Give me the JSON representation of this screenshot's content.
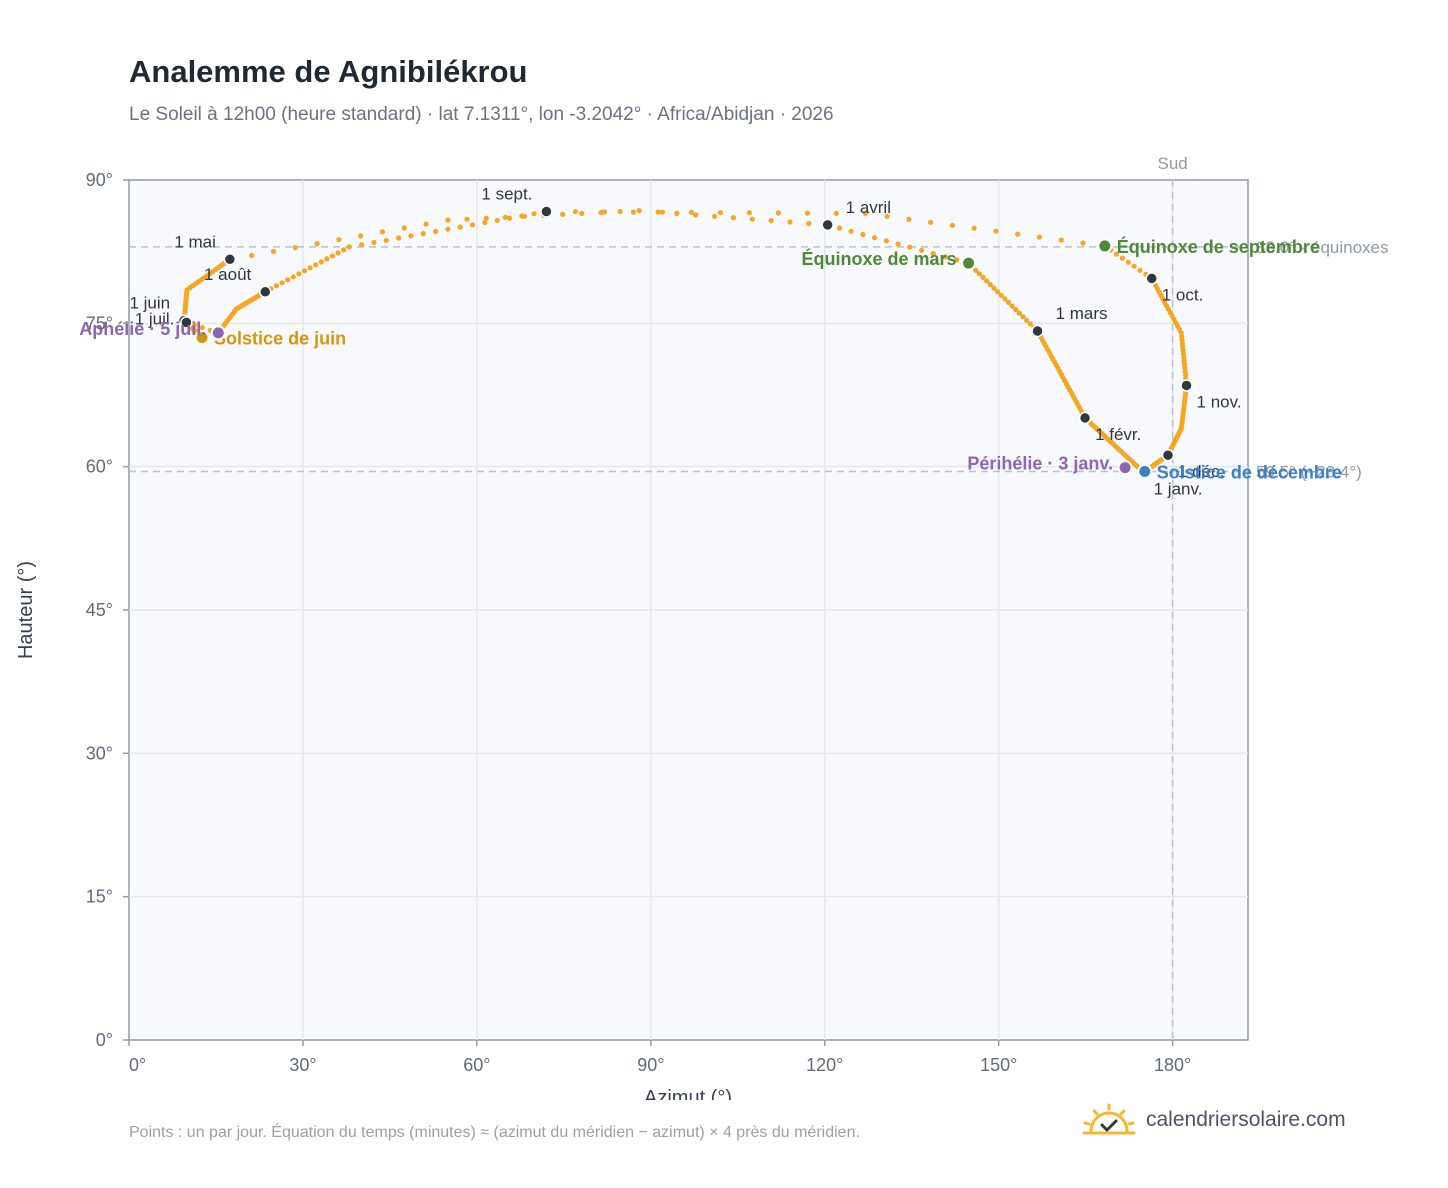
{
  "header": {
    "title": "Analemme de Agnibilékrou",
    "subtitle": "Le Soleil à 12h00 (heure standard) · lat 7.1311°, lon -3.2042° · Africa/Abidjan · 2026"
  },
  "footer": {
    "note": "Points : un par jour. Équation du temps (minutes) ≈ (azimut du méridien − azimut) × 4 près du méridien.",
    "brand": "calendriersolaire.com",
    "brand_icon": "sun-check-icon"
  },
  "colors": {
    "curve": "#f5a623",
    "month_marker": "#2f3742",
    "equinox": "#4e8a35",
    "june_solstice": "#d4950f",
    "december_solstice": "#3d7ec4",
    "apsis": "#9065b0",
    "reference_line": "#b8c1cc",
    "plot_background": "#f7f9fc",
    "grid": "#e3e8ee"
  },
  "chart_data": {
    "type": "scatter",
    "xlabel": "Azimut (°)",
    "ylabel": "Hauteur (°)",
    "xlim": [
      0,
      193
    ],
    "ylim": [
      0,
      90
    ],
    "x_ticks": [
      0,
      30,
      60,
      90,
      120,
      150,
      180
    ],
    "y_ticks": [
      0,
      15,
      30,
      45,
      60,
      75,
      90
    ],
    "tick_suffix": "°",
    "grid": true,
    "analemma_keypoints": [
      {
        "day": 1,
        "az": 175.0,
        "alt": 59.4
      },
      {
        "day": 32,
        "az": 164.9,
        "alt": 65.1
      },
      {
        "day": 60,
        "az": 156.7,
        "alt": 74.2
      },
      {
        "day": 79,
        "az": 144.8,
        "alt": 81.3
      },
      {
        "day": 91,
        "az": 120.5,
        "alt": 85.3
      },
      {
        "day": 101,
        "az": 88.0,
        "alt": 86.8
      },
      {
        "day": 111,
        "az": 55.0,
        "alt": 85.8
      },
      {
        "day": 121,
        "az": 17.4,
        "alt": 81.7
      },
      {
        "day": 136,
        "az": 10.0,
        "alt": 78.5
      },
      {
        "day": 152,
        "az": 9.5,
        "alt": 75.3
      },
      {
        "day": 172,
        "az": 12.6,
        "alt": 73.5
      },
      {
        "day": 182,
        "az": 9.9,
        "alt": 75.1
      },
      {
        "day": 186,
        "az": 15.4,
        "alt": 74.0
      },
      {
        "day": 196,
        "az": 18.5,
        "alt": 76.5
      },
      {
        "day": 213,
        "az": 23.5,
        "alt": 78.3
      },
      {
        "day": 228,
        "az": 38.0,
        "alt": 83.0
      },
      {
        "day": 244,
        "az": 72.0,
        "alt": 86.7
      },
      {
        "day": 255,
        "az": 127.0,
        "alt": 86.5
      },
      {
        "day": 266,
        "az": 168.3,
        "alt": 83.1
      },
      {
        "day": 274,
        "az": 176.4,
        "alt": 79.7
      },
      {
        "day": 290,
        "az": 181.5,
        "alt": 74.0
      },
      {
        "day": 305,
        "az": 182.4,
        "alt": 68.5
      },
      {
        "day": 320,
        "az": 181.5,
        "alt": 64.0
      },
      {
        "day": 335,
        "az": 179.2,
        "alt": 61.2
      },
      {
        "day": 355,
        "az": 175.2,
        "alt": 59.5
      },
      {
        "day": 365,
        "az": 175.0,
        "alt": 59.4
      }
    ],
    "month_markers": [
      {
        "label": "1 janv.",
        "az": 175.0,
        "alt": 59.4,
        "side": "below-right"
      },
      {
        "label": "1 févr.",
        "az": 164.9,
        "alt": 65.1,
        "side": "below-right"
      },
      {
        "label": "1 mars",
        "az": 156.7,
        "alt": 74.2,
        "side": "above-right"
      },
      {
        "label": "1 avril",
        "az": 120.5,
        "alt": 85.3,
        "side": "above-right"
      },
      {
        "label": "1 mai",
        "az": 17.4,
        "alt": 81.7,
        "side": "above-left"
      },
      {
        "label": "1 juin",
        "az": 9.5,
        "alt": 75.3,
        "side": "above-left"
      },
      {
        "label": "1 juil.",
        "az": 9.9,
        "alt": 75.1,
        "side": "left"
      },
      {
        "label": "1 août",
        "az": 23.5,
        "alt": 78.3,
        "side": "above-left"
      },
      {
        "label": "1 sept.",
        "az": 72.0,
        "alt": 86.7,
        "side": "above-left"
      },
      {
        "label": "1 oct.",
        "az": 176.4,
        "alt": 79.7,
        "side": "below-right"
      },
      {
        "label": "1 nov.",
        "az": 182.4,
        "alt": 68.5,
        "side": "below-right"
      },
      {
        "label": "1 déc.",
        "az": 179.2,
        "alt": 61.2,
        "side": "below-right"
      }
    ],
    "events": [
      {
        "label": "Équinoxe de mars",
        "az": 144.8,
        "alt": 81.3,
        "kind": "equinox",
        "side": "left"
      },
      {
        "label": "Équinoxe de septembre",
        "az": 168.3,
        "alt": 83.1,
        "kind": "equinox",
        "side": "right"
      },
      {
        "label": "Solstice de juin",
        "az": 12.6,
        "alt": 73.5,
        "kind": "june_solstice",
        "side": "right"
      },
      {
        "label": "Solstice de décembre",
        "az": 175.2,
        "alt": 59.5,
        "kind": "december_solstice",
        "side": "right"
      },
      {
        "label": "Aphélie · 5 juil.",
        "az": 15.4,
        "alt": 74.0,
        "kind": "apsis",
        "side": "left"
      },
      {
        "label": "Périhélie · 3 janv.",
        "az": 171.8,
        "alt": 59.9,
        "kind": "apsis",
        "side": "left"
      }
    ],
    "reference_lines": [
      {
        "orientation": "vertical",
        "x": 180,
        "label": "Sud"
      },
      {
        "orientation": "horizontal",
        "y": 83.0,
        "label": "83.0° · équinoxes"
      },
      {
        "orientation": "horizontal",
        "y": 59.5,
        "label": "59.5° (−23.4°)"
      }
    ]
  }
}
